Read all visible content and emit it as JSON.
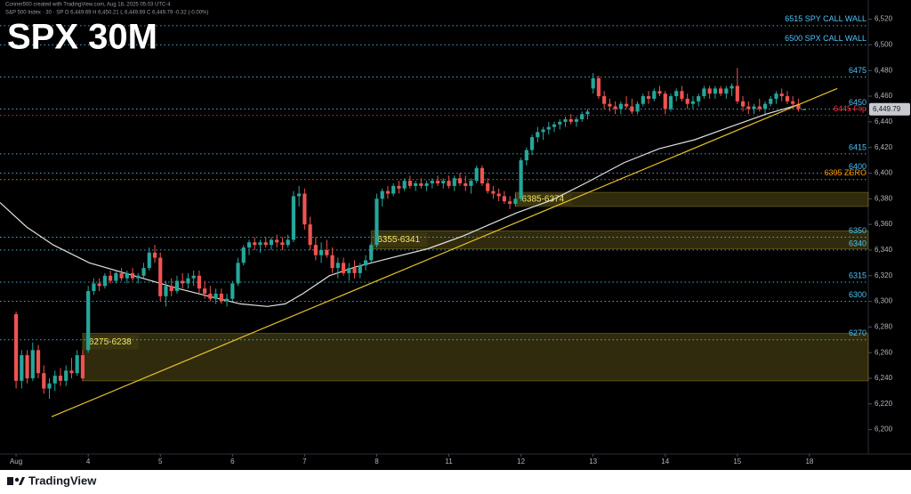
{
  "chart_data": {
    "type": "candlestick",
    "title": "SPX 30M",
    "watermark": "Conner500 created with TradingView.com, Aug 18, 2025 05:03 UTC-4",
    "header": "S&P 500 Index · 30 · SP  O 6,449.69 H 6,450.21 L 6,449.69 C 6,449.79 -0.32 (-0.00%)",
    "brand": "TradingView",
    "up_color": "#26a69a",
    "down_color": "#ef5350",
    "xlim": [
      -2.9,
      153.6
    ],
    "xticks": [
      {
        "value": 0,
        "label": "Aug"
      },
      {
        "value": 13,
        "label": "4"
      },
      {
        "value": 26,
        "label": "5"
      },
      {
        "value": 39,
        "label": "6"
      },
      {
        "value": 52,
        "label": "7"
      },
      {
        "value": 65,
        "label": "8"
      },
      {
        "value": 78,
        "label": "11"
      },
      {
        "value": 91,
        "label": "12"
      },
      {
        "value": 104,
        "label": "13"
      },
      {
        "value": 117,
        "label": "14"
      },
      {
        "value": 130,
        "label": "15"
      },
      {
        "value": 143,
        "label": "18"
      }
    ],
    "ylim": [
      6181,
      6535
    ],
    "yticks": [
      {
        "value": 6200,
        "label": "6,200"
      },
      {
        "value": 6220,
        "label": "6,220"
      },
      {
        "value": 6240,
        "label": "6,240"
      },
      {
        "value": 6260,
        "label": "6,260"
      },
      {
        "value": 6280,
        "label": "6,280"
      },
      {
        "value": 6300,
        "label": "6,300"
      },
      {
        "value": 6320,
        "label": "6,320"
      },
      {
        "value": 6340,
        "label": "6,340"
      },
      {
        "value": 6360,
        "label": "6,360"
      },
      {
        "value": 6380,
        "label": "6,380"
      },
      {
        "value": 6400,
        "label": "6,400"
      },
      {
        "value": 6420,
        "label": "6,420"
      },
      {
        "value": 6440,
        "label": "6,440"
      },
      {
        "value": 6460,
        "label": "6,460"
      },
      {
        "value": 6480,
        "label": "6,480"
      },
      {
        "value": 6500,
        "label": "6,500"
      },
      {
        "value": 6520,
        "label": "6,520"
      }
    ],
    "candles": [
      [
        6290,
        6292,
        6232,
        6238
      ],
      [
        6238,
        6262,
        6232,
        6258
      ],
      [
        6258,
        6262,
        6236,
        6240
      ],
      [
        6240,
        6268,
        6238,
        6262
      ],
      [
        6262,
        6266,
        6240,
        6244
      ],
      [
        6244,
        6250,
        6228,
        6232
      ],
      [
        6232,
        6240,
        6224,
        6236
      ],
      [
        6236,
        6246,
        6230,
        6242
      ],
      [
        6242,
        6248,
        6234,
        6238
      ],
      [
        6238,
        6250,
        6234,
        6246
      ],
      [
        6246,
        6256,
        6240,
        6244
      ],
      [
        6244,
        6262,
        6242,
        6258
      ],
      [
        6258,
        6262,
        6238,
        6240
      ],
      [
        6262,
        6312,
        6260,
        6308
      ],
      [
        6308,
        6318,
        6305,
        6314
      ],
      [
        6314,
        6318,
        6308,
        6312
      ],
      [
        6312,
        6322,
        6310,
        6320
      ],
      [
        6320,
        6324,
        6314,
        6316
      ],
      [
        6316,
        6324,
        6314,
        6322
      ],
      [
        6322,
        6326,
        6316,
        6318
      ],
      [
        6318,
        6324,
        6314,
        6322
      ],
      [
        6322,
        6326,
        6316,
        6318
      ],
      [
        6318,
        6322,
        6314,
        6320
      ],
      [
        6320,
        6330,
        6318,
        6326
      ],
      [
        6326,
        6342,
        6324,
        6338
      ],
      [
        6338,
        6344,
        6330,
        6334
      ],
      [
        6334,
        6338,
        6300,
        6304
      ],
      [
        6304,
        6316,
        6296,
        6312
      ],
      [
        6312,
        6318,
        6304,
        6308
      ],
      [
        6308,
        6320,
        6306,
        6316
      ],
      [
        6316,
        6322,
        6310,
        6314
      ],
      [
        6314,
        6322,
        6310,
        6318
      ],
      [
        6318,
        6324,
        6312,
        6320
      ],
      [
        6320,
        6324,
        6306,
        6310
      ],
      [
        6310,
        6316,
        6302,
        6306
      ],
      [
        6306,
        6312,
        6300,
        6302
      ],
      [
        6302,
        6310,
        6298,
        6306
      ],
      [
        6306,
        6310,
        6298,
        6300
      ],
      [
        6300,
        6306,
        6296,
        6302
      ],
      [
        6302,
        6316,
        6300,
        6314
      ],
      [
        6314,
        6334,
        6312,
        6330
      ],
      [
        6330,
        6344,
        6328,
        6342
      ],
      [
        6342,
        6348,
        6336,
        6346
      ],
      [
        6346,
        6350,
        6340,
        6344
      ],
      [
        6344,
        6348,
        6338,
        6346
      ],
      [
        6346,
        6350,
        6342,
        6344
      ],
      [
        6344,
        6350,
        6340,
        6348
      ],
      [
        6348,
        6352,
        6342,
        6346
      ],
      [
        6346,
        6350,
        6340,
        6344
      ],
      [
        6344,
        6352,
        6342,
        6348
      ],
      [
        6348,
        6386,
        6346,
        6382
      ],
      [
        6382,
        6390,
        6374,
        6384
      ],
      [
        6384,
        6388,
        6356,
        6360
      ],
      [
        6360,
        6366,
        6340,
        6344
      ],
      [
        6344,
        6350,
        6332,
        6336
      ],
      [
        6336,
        6346,
        6330,
        6340
      ],
      [
        6340,
        6348,
        6334,
        6336
      ],
      [
        6336,
        6342,
        6322,
        6326
      ],
      [
        6326,
        6334,
        6318,
        6330
      ],
      [
        6330,
        6334,
        6320,
        6322
      ],
      [
        6322,
        6330,
        6316,
        6326
      ],
      [
        6326,
        6332,
        6318,
        6322
      ],
      [
        6322,
        6330,
        6318,
        6328
      ],
      [
        6328,
        6336,
        6324,
        6332
      ],
      [
        6332,
        6346,
        6330,
        6344
      ],
      [
        6344,
        6384,
        6342,
        6380
      ],
      [
        6380,
        6388,
        6374,
        6386
      ],
      [
        6386,
        6390,
        6380,
        6384
      ],
      [
        6384,
        6392,
        6382,
        6390
      ],
      [
        6390,
        6394,
        6384,
        6388
      ],
      [
        6388,
        6396,
        6386,
        6394
      ],
      [
        6394,
        6398,
        6388,
        6390
      ],
      [
        6390,
        6394,
        6386,
        6392
      ],
      [
        6392,
        6396,
        6388,
        6390
      ],
      [
        6390,
        6394,
        6386,
        6392
      ],
      [
        6392,
        6396,
        6388,
        6394
      ],
      [
        6394,
        6398,
        6390,
        6392
      ],
      [
        6392,
        6396,
        6388,
        6394
      ],
      [
        6394,
        6398,
        6388,
        6390
      ],
      [
        6390,
        6398,
        6386,
        6396
      ],
      [
        6396,
        6400,
        6390,
        6392
      ],
      [
        6392,
        6398,
        6386,
        6390
      ],
      [
        6390,
        6396,
        6384,
        6394
      ],
      [
        6394,
        6406,
        6392,
        6404
      ],
      [
        6404,
        6406,
        6390,
        6392
      ],
      [
        6392,
        6396,
        6384,
        6386
      ],
      [
        6386,
        6390,
        6380,
        6384
      ],
      [
        6384,
        6388,
        6378,
        6382
      ],
      [
        6382,
        6386,
        6376,
        6378
      ],
      [
        6378,
        6382,
        6372,
        6376
      ],
      [
        6376,
        6384,
        6374,
        6380
      ],
      [
        6380,
        6412,
        6378,
        6410
      ],
      [
        6410,
        6420,
        6406,
        6418
      ],
      [
        6418,
        6430,
        6414,
        6428
      ],
      [
        6428,
        6436,
        6424,
        6432
      ],
      [
        6432,
        6436,
        6426,
        6434
      ],
      [
        6434,
        6440,
        6430,
        6436
      ],
      [
        6436,
        6440,
        6432,
        6438
      ],
      [
        6438,
        6442,
        6434,
        6440
      ],
      [
        6440,
        6444,
        6436,
        6442
      ],
      [
        6442,
        6446,
        6438,
        6440
      ],
      [
        6440,
        6444,
        6436,
        6442
      ],
      [
        6442,
        6448,
        6440,
        6446
      ],
      [
        6446,
        6450,
        6442,
        6448
      ],
      [
        6466,
        6478,
        6462,
        6474
      ],
      [
        6474,
        6476,
        6458,
        6460
      ],
      [
        6460,
        6464,
        6450,
        6454
      ],
      [
        6454,
        6458,
        6448,
        6452
      ],
      [
        6452,
        6456,
        6446,
        6450
      ],
      [
        6450,
        6456,
        6446,
        6454
      ],
      [
        6454,
        6460,
        6450,
        6452
      ],
      [
        6452,
        6458,
        6446,
        6448
      ],
      [
        6448,
        6456,
        6446,
        6454
      ],
      [
        6454,
        6462,
        6452,
        6460
      ],
      [
        6460,
        6464,
        6454,
        6458
      ],
      [
        6458,
        6466,
        6456,
        6464
      ],
      [
        6464,
        6468,
        6460,
        6462
      ],
      [
        6462,
        6464,
        6446,
        6450
      ],
      [
        6450,
        6462,
        6448,
        6460
      ],
      [
        6460,
        6466,
        6456,
        6464
      ],
      [
        6464,
        6468,
        6456,
        6458
      ],
      [
        6458,
        6462,
        6450,
        6454
      ],
      [
        6454,
        6460,
        6450,
        6456
      ],
      [
        6456,
        6462,
        6452,
        6460
      ],
      [
        6460,
        6468,
        6458,
        6466
      ],
      [
        6466,
        6468,
        6458,
        6462
      ],
      [
        6462,
        6468,
        6458,
        6466
      ],
      [
        6466,
        6468,
        6460,
        6462
      ],
      [
        6462,
        6468,
        6458,
        6466
      ],
      [
        6466,
        6470,
        6460,
        6468
      ],
      [
        6468,
        6482,
        6454,
        6456
      ],
      [
        6456,
        6460,
        6448,
        6452
      ],
      [
        6452,
        6456,
        6446,
        6450
      ],
      [
        6450,
        6454,
        6446,
        6452
      ],
      [
        6452,
        6458,
        6448,
        6450
      ],
      [
        6450,
        6456,
        6446,
        6454
      ],
      [
        6454,
        6460,
        6452,
        6458
      ],
      [
        6458,
        6464,
        6454,
        6462
      ],
      [
        6462,
        6466,
        6456,
        6460
      ],
      [
        6460,
        6464,
        6454,
        6456
      ],
      [
        6456,
        6460,
        6450,
        6454
      ],
      [
        6454,
        6458,
        6448,
        6450
      ],
      [
        6449.69,
        6450.21,
        6449.69,
        6449.79
      ]
    ],
    "ma": {
      "color": "#e0e0e0",
      "x": [
        -2.9,
        1.9,
        6.7,
        13.2,
        21.2,
        29.2,
        35.6,
        40.4,
        45.3,
        48.5,
        51.7,
        56.5,
        61.3,
        67.7,
        74.2,
        80.6,
        85.4,
        90.2,
        96.6,
        103,
        109.5,
        115.9,
        122.3,
        128.7,
        135.2,
        140.8
      ],
      "values": [
        6377,
        6358,
        6344,
        6330,
        6320,
        6310,
        6303,
        6298,
        6296,
        6298,
        6306,
        6320,
        6327,
        6334,
        6341,
        6351,
        6360,
        6369,
        6379,
        6393,
        6408,
        6419,
        6426,
        6436,
        6446,
        6453
      ]
    },
    "trendline": {
      "color": "#e6c229",
      "x": [
        6.4,
        148
      ],
      "values": [
        6210,
        6466
      ]
    },
    "levels": [
      {
        "value": 6515,
        "label": "6515 SPY CALL WALL",
        "color": "#4fc3f7"
      },
      {
        "value": 6500,
        "label": "6500 SPX CALL WALL",
        "color": "#4fc3f7"
      },
      {
        "value": 6475,
        "label": "6475",
        "color": "#4fc3f7"
      },
      {
        "value": 6450,
        "label": "6450",
        "color": "#4fc3f7"
      },
      {
        "value": 6445,
        "label": "6445 Flip",
        "color": "#f23645"
      },
      {
        "value": 6415,
        "label": "6415",
        "color": "#4fc3f7"
      },
      {
        "value": 6400,
        "label": "6400",
        "color": "#4fc3f7"
      },
      {
        "value": 6395,
        "label": "6395 ZERO",
        "color": "#ff9800"
      },
      {
        "value": 6350,
        "label": "6350",
        "color": "#4fc3f7"
      },
      {
        "value": 6340,
        "label": "6340",
        "color": "#4fc3f7"
      },
      {
        "value": 6315,
        "label": "6315",
        "color": "#4fc3f7"
      },
      {
        "value": 6300,
        "label": "6300",
        "color": "#4fc3f7"
      },
      {
        "value": 6270,
        "label": "6270",
        "color": "#4fc3f7"
      }
    ],
    "zones": [
      {
        "label": "6385-6374",
        "top": 6385,
        "bottom": 6374,
        "start": 90
      },
      {
        "label": "6355-6341",
        "top": 6355,
        "bottom": 6341,
        "start": 64
      },
      {
        "label": "6275-6238",
        "top": 6275,
        "bottom": 6238,
        "start": 12
      }
    ],
    "last_price": {
      "value": 6449.79,
      "label": "6,449.79"
    }
  }
}
